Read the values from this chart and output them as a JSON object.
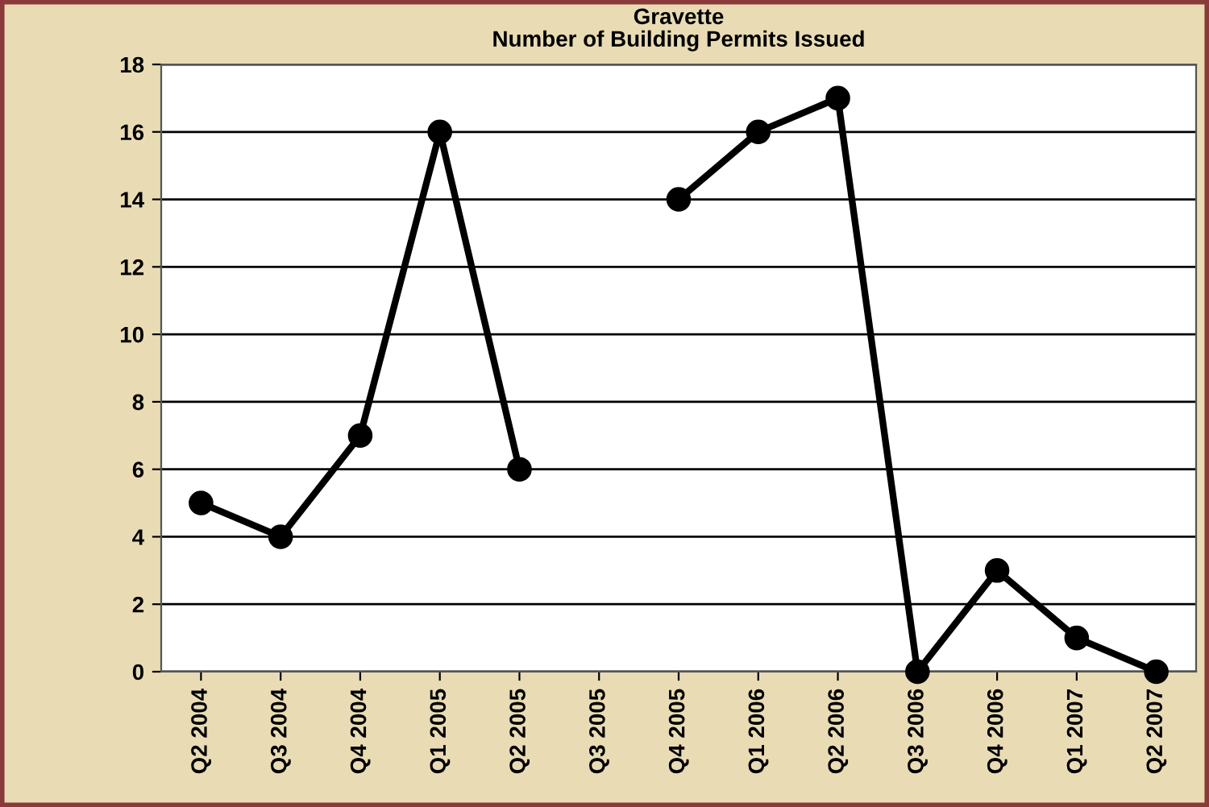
{
  "chart_data": {
    "type": "line",
    "title": "Gravette\nNumber of Building Permits Issued",
    "categories": [
      "Q2 2004",
      "Q3 2004",
      "Q4 2004",
      "Q1 2005",
      "Q2 2005",
      "Q3 2005",
      "Q4 2005",
      "Q1 2006",
      "Q2 2006",
      "Q3 2006",
      "Q4 2006",
      "Q1 2007",
      "Q2 2007"
    ],
    "series": [
      {
        "color": "#000000",
        "values": [
          5,
          4,
          7,
          16,
          6,
          null,
          14,
          16,
          17,
          0,
          3,
          1,
          0
        ]
      }
    ],
    "ylim": [
      0,
      18
    ],
    "yticks": [
      0,
      2,
      4,
      6,
      8,
      10,
      12,
      14,
      16,
      18
    ],
    "grid": "y",
    "marker": "circle",
    "line_style": "solid",
    "legend": false
  }
}
